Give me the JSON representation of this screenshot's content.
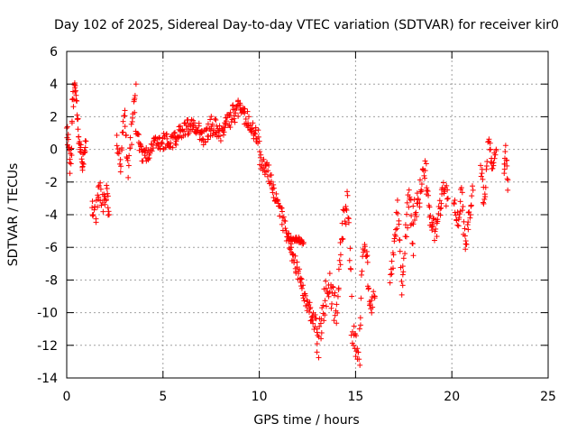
{
  "chart_data": {
    "type": "scatter",
    "title": "Day 102 of 2025, Sidereal Day-to-day VTEC variation (SDTVAR) for receiver kir0",
    "xlabel": "GPS time / hours",
    "ylabel": "SDTVAR / TECUs",
    "xlim": [
      0,
      25
    ],
    "ylim": [
      -14,
      6
    ],
    "xticks": [
      0,
      5,
      10,
      15,
      20,
      25
    ],
    "yticks": [
      -14,
      -12,
      -10,
      -8,
      -6,
      -4,
      -2,
      0,
      2,
      4,
      6
    ],
    "grid": true,
    "marker": "+",
    "marker_color": "#ff0000",
    "series": [
      {
        "name": "SDTVAR",
        "segments": [
          {
            "x": [
              0.0,
              0.1,
              0.2,
              0.3,
              0.4,
              0.5,
              0.6,
              0.7
            ],
            "y": [
              1.0,
              0.5,
              -1.2,
              2.5,
              3.8,
              3.2,
              1.5,
              0.0
            ],
            "spread": 1.2
          },
          {
            "x": [
              0.7,
              0.8,
              0.9,
              1.0
            ],
            "y": [
              0.5,
              -1.0,
              -0.5,
              0.5
            ],
            "spread": 0.8
          },
          {
            "x": [
              1.3,
              1.5,
              1.7,
              1.9,
              2.1,
              2.2
            ],
            "y": [
              -3.5,
              -4.0,
              -2.5,
              -3.5,
              -2.5,
              -4.0
            ],
            "spread": 1.2
          },
          {
            "x": [
              2.6,
              2.8,
              3.0,
              3.2,
              3.4,
              3.6
            ],
            "y": [
              0.5,
              -1.0,
              2.5,
              -1.5,
              1.5,
              4.0
            ],
            "spread": 1.0
          },
          {
            "x": [
              3.6,
              4.0,
              4.5,
              5.0,
              5.5,
              6.0,
              6.5,
              7.0
            ],
            "y": [
              1.0,
              -0.5,
              0.2,
              0.5,
              0.5,
              1.2,
              1.5,
              1.0
            ],
            "spread": 1.0
          },
          {
            "x": [
              7.0,
              7.5,
              8.0,
              8.5,
              9.0,
              9.5,
              10.0
            ],
            "y": [
              0.5,
              1.5,
              1.0,
              2.0,
              2.5,
              1.5,
              0.5
            ],
            "spread": 1.2
          },
          {
            "x": [
              10.0,
              10.5,
              11.0,
              11.5,
              12.0,
              12.5,
              13.0
            ],
            "y": [
              -0.5,
              -1.5,
              -3.5,
              -5.5,
              -7.5,
              -9.5,
              -11.0
            ],
            "spread": 1.0
          },
          {
            "x": [
              11.5,
              12.0,
              12.3
            ],
            "y": [
              -5.5,
              -5.5,
              -5.7
            ],
            "spread": 0.3
          },
          {
            "x": [
              13.0,
              13.3,
              13.6,
              14.0,
              14.3,
              14.6,
              14.8
            ],
            "y": [
              -12.5,
              -10.0,
              -8.0,
              -10.0,
              -5.0,
              -3.0,
              -9.0
            ],
            "spread": 2.0
          },
          {
            "x": [
              14.8,
              15.0,
              15.2,
              15.4,
              15.6,
              15.8,
              16.0
            ],
            "y": [
              -11.0,
              -12.0,
              -12.5,
              -6.0,
              -7.0,
              -10.0,
              -9.0
            ],
            "spread": 1.5
          },
          {
            "x": [
              16.8,
              17.0,
              17.2,
              17.4,
              17.6,
              17.8,
              18.0
            ],
            "y": [
              -8.5,
              -6.0,
              -3.5,
              -9.0,
              -5.0,
              -2.5,
              -6.5
            ],
            "spread": 1.5
          },
          {
            "x": [
              18.0,
              18.3,
              18.6,
              18.9,
              19.2,
              19.5,
              19.8
            ],
            "y": [
              -4.0,
              -3.0,
              -1.0,
              -4.5,
              -5.0,
              -2.5,
              -3.0
            ],
            "spread": 1.5
          },
          {
            "x": [
              20.1,
              20.3,
              20.5,
              20.7,
              20.9,
              21.1
            ],
            "y": [
              -3.0,
              -4.5,
              -2.5,
              -6.0,
              -4.0,
              -2.5
            ],
            "spread": 1.2
          },
          {
            "x": [
              21.5,
              21.7,
              21.9,
              22.1,
              22.3
            ],
            "y": [
              -1.0,
              -3.5,
              0.5,
              -1.0,
              0.0
            ],
            "spread": 1.0
          },
          {
            "x": [
              22.7,
              22.8,
              22.9
            ],
            "y": [
              -1.5,
              0.0,
              -2.5
            ],
            "spread": 0.5
          }
        ]
      }
    ]
  }
}
